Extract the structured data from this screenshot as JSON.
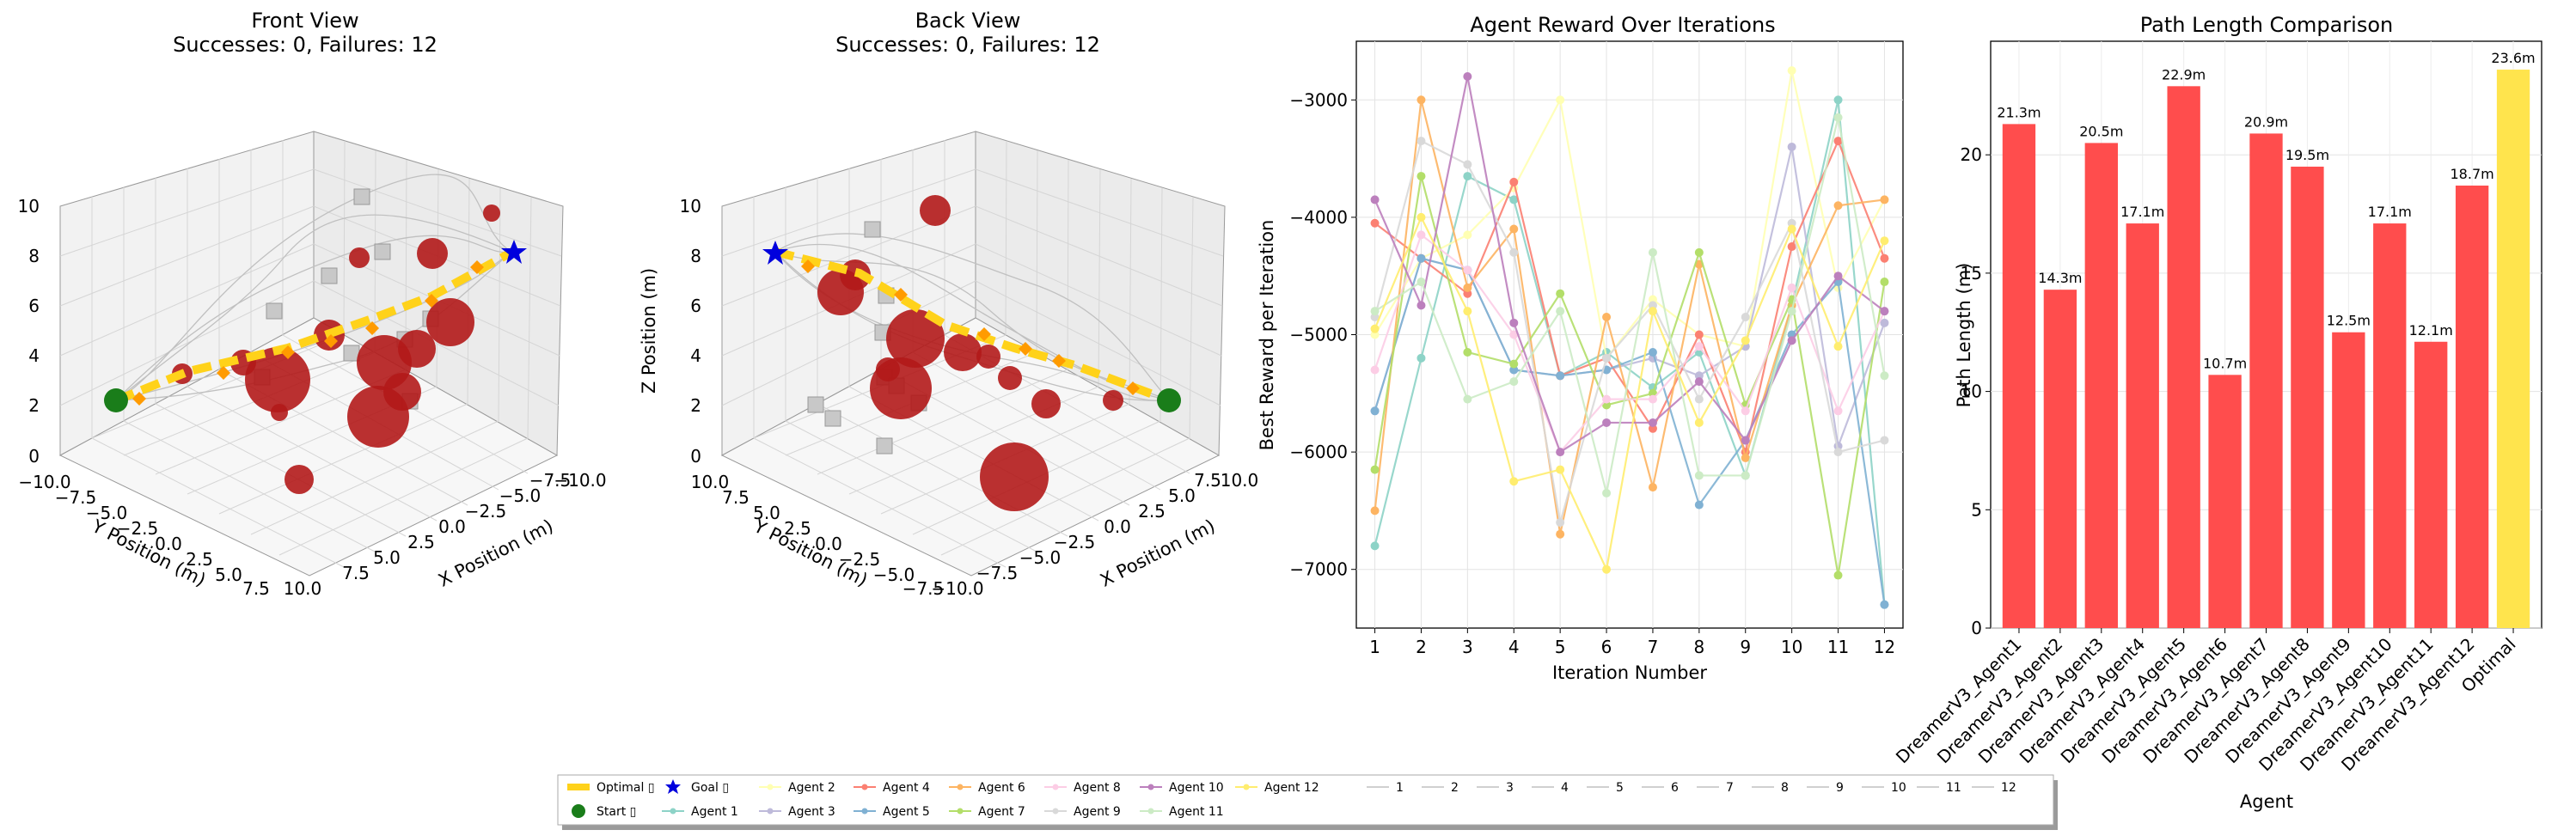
{
  "front_view": {
    "title_line1": "Front View",
    "title_line2": "Successes: 0, Failures: 12",
    "xlabel": "X Position (m)",
    "ylabel": "Y Position (m)",
    "z_ticks": [
      "0",
      "2",
      "4",
      "6",
      "8",
      "10"
    ],
    "y_ticks": [
      "−10.0",
      "−7.5",
      "−5.0",
      "−2.5",
      "0.0",
      "2.5",
      "5.0",
      "7.5",
      "10.0"
    ],
    "x_ticks": [
      "10.0",
      "7.5",
      "5.0",
      "2.5",
      "0.0",
      "−2.5",
      "−5.0",
      "−7.5",
      "−10.0"
    ]
  },
  "back_view": {
    "title_line1": "Back View",
    "title_line2": "Successes: 0, Failures: 12",
    "xlabel": "X Position (m)",
    "ylabel": "Y Position (m)",
    "zlabel": "Z Position (m)",
    "z_ticks": [
      "0",
      "2",
      "4",
      "6",
      "8",
      "10"
    ],
    "y_ticks": [
      "10.0",
      "7.5",
      "5.0",
      "2.5",
      "0.0",
      "−2.5",
      "−5.0",
      "−7.5",
      "−10.0"
    ],
    "x_ticks": [
      "−7.5",
      "−5.0",
      "−2.5",
      "0.0",
      "2.5",
      "5.0",
      "7.5",
      "10.0"
    ]
  },
  "colors": {
    "optimal": "#ffd21a",
    "start": "#1a7d1a",
    "goal": "#0000dd",
    "obstacle": "#b3191a",
    "bar_red": "#ff4d4d",
    "bar_yellow": "#ffe44d",
    "agents": [
      "#8dd3c7",
      "#ffffb3",
      "#bebada",
      "#fb8072",
      "#80b1d3",
      "#fdb462",
      "#b3de69",
      "#fccde5",
      "#d9d9d9",
      "#bc80bd",
      "#ccebc5",
      "#ffed6f"
    ]
  },
  "chart_data": [
    {
      "type": "line",
      "title": "Agent Reward Over Iterations",
      "xlabel": "Iteration Number",
      "ylabel": "Best Reward per Iteration",
      "x": [
        1,
        2,
        3,
        4,
        5,
        6,
        7,
        8,
        9,
        10,
        11,
        12
      ],
      "xlim": [
        0.6,
        12.4
      ],
      "ylim": [
        -7500,
        -2500
      ],
      "yticks": [
        -7000,
        -6000,
        -5000,
        -4000,
        -3000
      ],
      "ytick_labels": [
        "−7000",
        "−6000",
        "−5000",
        "−4000",
        "−3000"
      ],
      "grid": true,
      "series": [
        {
          "name": "Agent 1",
          "values": [
            -6800,
            -5200,
            -3650,
            -3850,
            -5350,
            -5150,
            -5450,
            -5150,
            -6200,
            -4750,
            -3000,
            -7300
          ]
        },
        {
          "name": "Agent 2",
          "values": [
            -5000,
            -4350,
            -4150,
            -3750,
            -3000,
            -5200,
            -4700,
            -5000,
            -5100,
            -2750,
            -4600,
            -3850
          ]
        },
        {
          "name": "Agent 3",
          "values": [
            -5650,
            -4350,
            -4450,
            -5300,
            -5350,
            -5300,
            -5200,
            -5350,
            -5100,
            -3400,
            -5950,
            -4900
          ]
        },
        {
          "name": "Agent 4",
          "values": [
            -4050,
            -4350,
            -4650,
            -3700,
            -5350,
            -5200,
            -5800,
            -5000,
            -6000,
            -4250,
            -3350,
            -4350
          ]
        },
        {
          "name": "Agent 5",
          "values": [
            -5650,
            -4350,
            -4450,
            -5300,
            -5350,
            -5300,
            -5150,
            -6450,
            -5900,
            -5000,
            -4550,
            -7300
          ]
        },
        {
          "name": "Agent 6",
          "values": [
            -6500,
            -3000,
            -4600,
            -4100,
            -6700,
            -4850,
            -6300,
            -4400,
            -6050,
            -4750,
            -3900,
            -3850
          ]
        },
        {
          "name": "Agent 7",
          "values": [
            -6150,
            -3650,
            -5150,
            -5250,
            -4650,
            -5600,
            -5500,
            -4300,
            -5600,
            -4700,
            -7050,
            -4550
          ]
        },
        {
          "name": "Agent 8",
          "values": [
            -5300,
            -4150,
            -4450,
            -5000,
            -6000,
            -5550,
            -5550,
            -5100,
            -5650,
            -4600,
            -5650,
            -4800
          ]
        },
        {
          "name": "Agent 9",
          "values": [
            -4850,
            -3350,
            -3550,
            -4300,
            -6600,
            -5200,
            -4750,
            -5550,
            -4850,
            -4050,
            -6000,
            -5900
          ]
        },
        {
          "name": "Agent 10",
          "values": [
            -3850,
            -4750,
            -2800,
            -4900,
            -6000,
            -5750,
            -5750,
            -5400,
            -5900,
            -5050,
            -4500,
            -4800
          ]
        },
        {
          "name": "Agent 11",
          "values": [
            -4800,
            -4550,
            -5550,
            -5400,
            -4800,
            -6350,
            -4300,
            -6200,
            -6200,
            -4800,
            -3150,
            -5350
          ]
        },
        {
          "name": "Agent 12",
          "values": [
            -4950,
            -4000,
            -4800,
            -6250,
            -6150,
            -7000,
            -4800,
            -5750,
            -5050,
            -4100,
            -5100,
            -4200
          ]
        }
      ]
    },
    {
      "type": "bar",
      "title": "Path Length Comparison",
      "xlabel": "Agent",
      "ylabel": "Path Length (m)",
      "categories": [
        "DreamerV3_Agent1",
        "DreamerV3_Agent2",
        "DreamerV3_Agent3",
        "DreamerV3_Agent4",
        "DreamerV3_Agent5",
        "DreamerV3_Agent6",
        "DreamerV3_Agent7",
        "DreamerV3_Agent8",
        "DreamerV3_Agent9",
        "DreamerV3_Agent10",
        "DreamerV3_Agent11",
        "DreamerV3_Agent12",
        "Optimal"
      ],
      "values": [
        21.3,
        14.3,
        20.5,
        17.1,
        22.9,
        10.7,
        20.9,
        19.5,
        12.5,
        17.1,
        12.1,
        18.7,
        23.6
      ],
      "data_labels": [
        "21.3m",
        "14.3m",
        "20.5m",
        "17.1m",
        "22.9m",
        "10.7m",
        "20.9m",
        "19.5m",
        "12.5m",
        "17.1m",
        "12.1m",
        "18.7m",
        "23.6m"
      ],
      "ylim": [
        0,
        24.8
      ],
      "yticks": [
        0,
        5,
        10,
        15,
        20
      ],
      "grid": true
    }
  ],
  "legend": {
    "optimal": "Optimal ▯",
    "start": "Start ▯",
    "goal": "Goal ▯",
    "agents": [
      "Agent 1",
      "Agent 2",
      "Agent 3",
      "Agent 4",
      "Agent 5",
      "Agent 6",
      "Agent 7",
      "Agent 8",
      "Agent 9",
      "Agent 10",
      "Agent 11",
      "Agent 12"
    ],
    "numbers": [
      "1",
      "2",
      "3",
      "4",
      "5",
      "6",
      "7",
      "8",
      "9",
      "10",
      "11",
      "12"
    ]
  }
}
